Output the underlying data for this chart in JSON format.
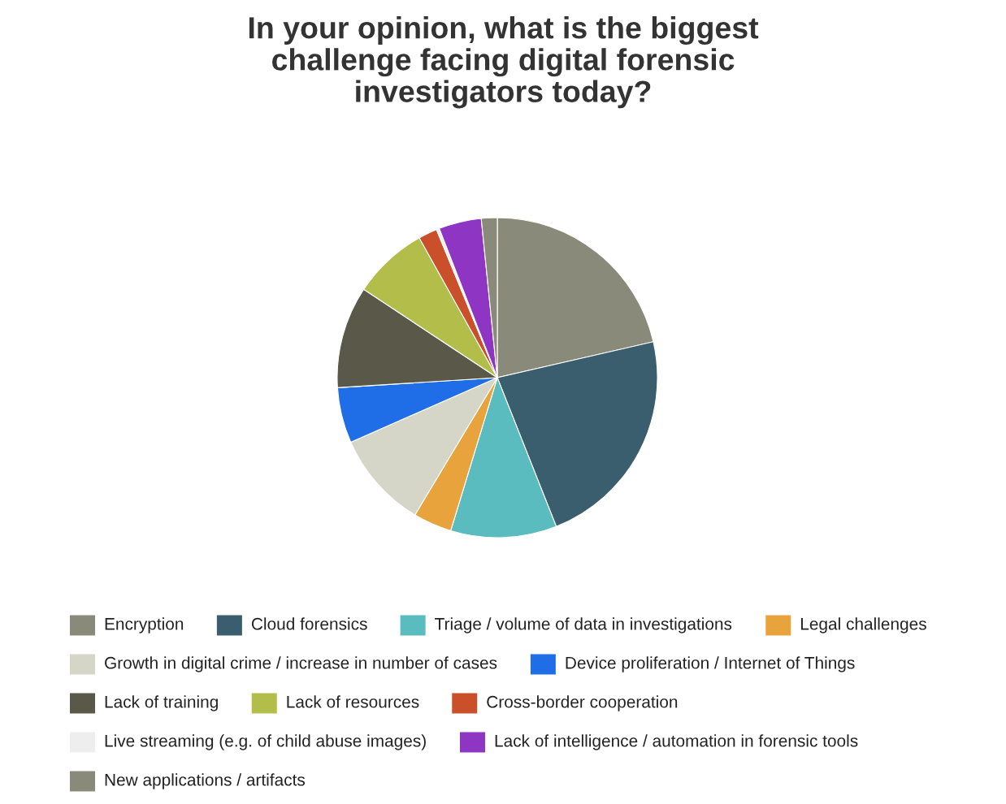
{
  "chart_data": {
    "type": "pie",
    "title": "In your opinion, what is the biggest challenge facing digital forensic investigators today?",
    "categories": [
      "Encryption",
      "Cloud forensics",
      "Triage / volume of data in investigations",
      "Legal challenges",
      "Growth in digital crime / increase in number of cases",
      "Device proliferation / Internet of Things",
      "Lack of training",
      "Lack of resources",
      "Cross-border cooperation",
      "Live streaming (e.g. of child abuse images)",
      "Lack of intelligence / automation in forensic tools",
      "New applications / artifacts"
    ],
    "values": [
      21.4,
      22.6,
      10.7,
      3.9,
      9.8,
      5.6,
      10.3,
      7.6,
      1.9,
      0.3,
      4.3,
      1.6
    ],
    "colors": [
      "#8a8a7b",
      "#3b5e6e",
      "#5bbcbf",
      "#e8a33d",
      "#d5d5c8",
      "#1f6ee8",
      "#5a5848",
      "#b2bd4a",
      "#c9502a",
      "#eeeeee",
      "#8e35c4",
      "#8a8a7b"
    ],
    "legend": "bottom"
  }
}
